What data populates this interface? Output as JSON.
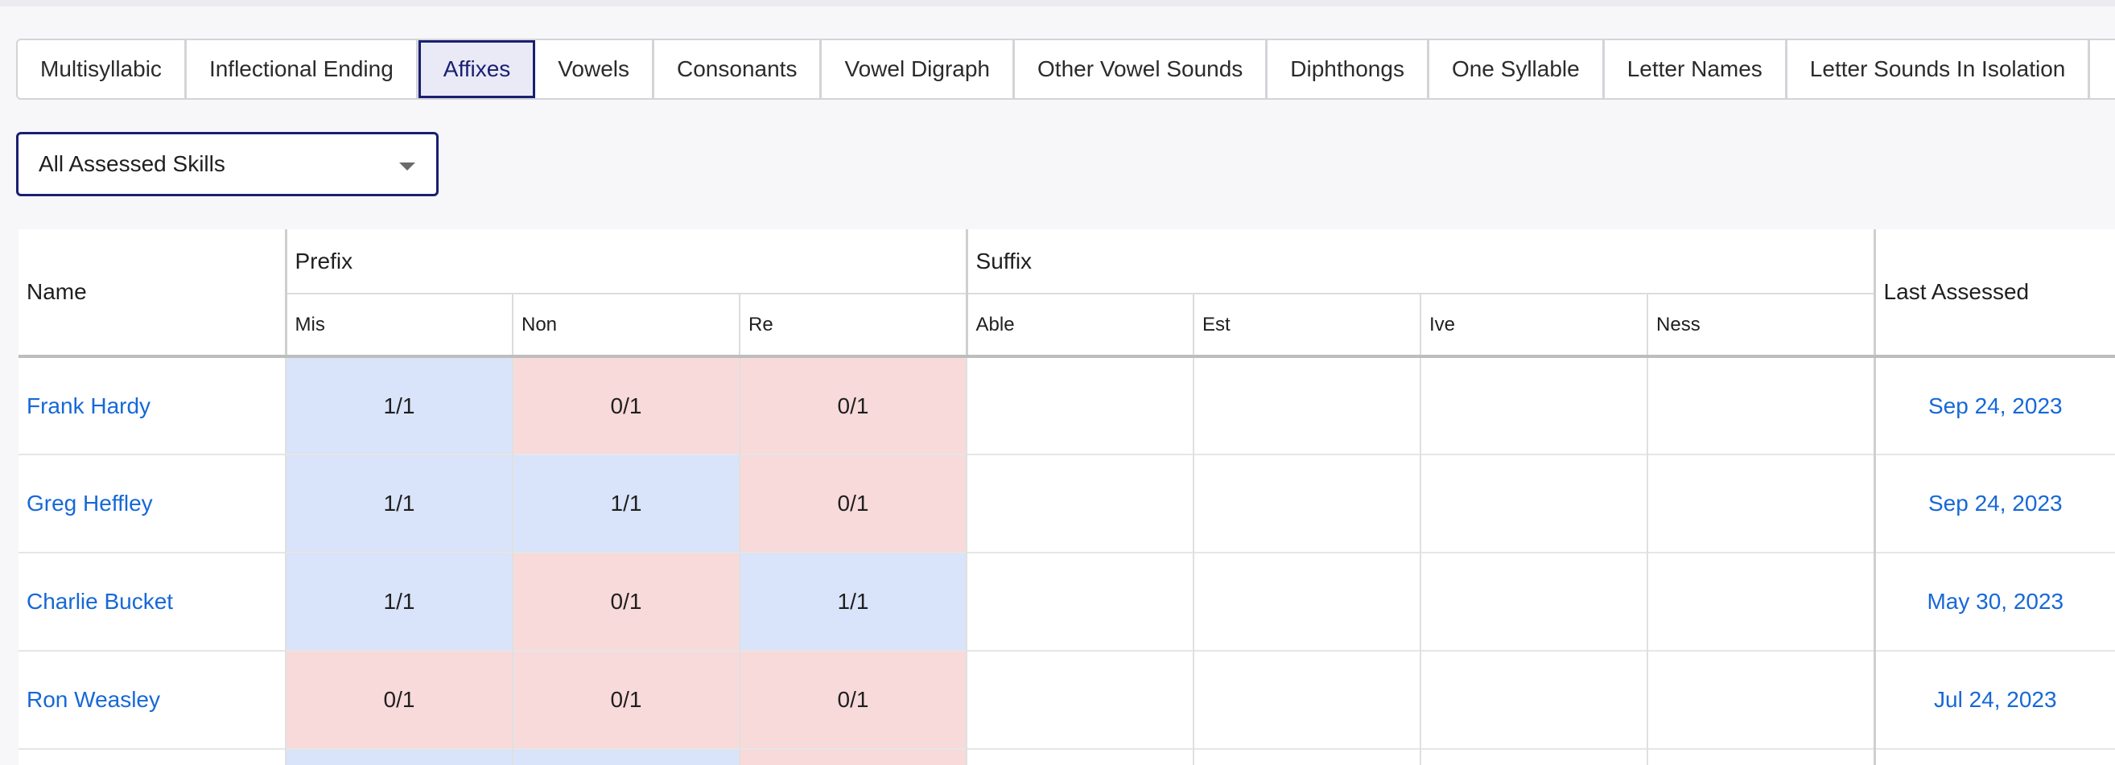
{
  "tabs": [
    {
      "label": "Multisyllabic",
      "active": false
    },
    {
      "label": "Inflectional Ending",
      "active": false
    },
    {
      "label": "Affixes",
      "active": true
    },
    {
      "label": "Vowels",
      "active": false
    },
    {
      "label": "Consonants",
      "active": false
    },
    {
      "label": "Vowel Digraph",
      "active": false
    },
    {
      "label": "Other Vowel Sounds",
      "active": false
    },
    {
      "label": "Diphthongs",
      "active": false
    },
    {
      "label": "One Syllable",
      "active": false
    },
    {
      "label": "Letter Names",
      "active": false
    },
    {
      "label": "Letter Sounds In Isolation",
      "active": false
    }
  ],
  "skill_filter": {
    "selected": "All Assessed Skills"
  },
  "table": {
    "name_header": "Name",
    "last_assessed_header": "Last Assessed",
    "groups": [
      {
        "label": "Prefix",
        "columns": [
          "Mis",
          "Non",
          "Re"
        ]
      },
      {
        "label": "Suffix",
        "columns": [
          "Able",
          "Est",
          "Ive",
          "Ness"
        ]
      }
    ],
    "rows": [
      {
        "name": "Frank Hardy",
        "scores": [
          "1/1",
          "0/1",
          "0/1",
          "",
          "",
          "",
          ""
        ],
        "last_assessed": "Sep 24, 2023"
      },
      {
        "name": "Greg Heffley",
        "scores": [
          "1/1",
          "1/1",
          "0/1",
          "",
          "",
          "",
          ""
        ],
        "last_assessed": "Sep 24, 2023"
      },
      {
        "name": "Charlie Bucket",
        "scores": [
          "1/1",
          "0/1",
          "1/1",
          "",
          "",
          "",
          ""
        ],
        "last_assessed": "May 30, 2023"
      },
      {
        "name": "Ron Weasley",
        "scores": [
          "0/1",
          "0/1",
          "0/1",
          "",
          "",
          "",
          ""
        ],
        "last_assessed": "Jul 24, 2023"
      }
    ]
  },
  "colors": {
    "pass": "#d9e3f9",
    "fail": "#f8dadb",
    "accent": "#1a1f71",
    "link": "#1668d8"
  }
}
